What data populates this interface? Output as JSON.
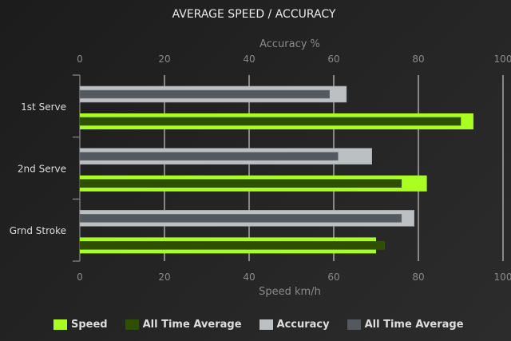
{
  "chart_data": {
    "type": "bar",
    "orientation": "horizontal",
    "title": "AVERAGE SPEED / ACCURACY",
    "categories": [
      "1st Serve",
      "2nd Serve",
      "Grnd Stroke"
    ],
    "top_axis": {
      "label": "Accuracy %",
      "range": [
        0,
        100
      ],
      "ticks": [
        "0",
        "20",
        "40",
        "60",
        "80",
        "100"
      ]
    },
    "bottom_axis": {
      "label": "Speed km/h",
      "range": [
        0,
        100
      ],
      "ticks": [
        "0",
        "20",
        "40",
        "60",
        "80",
        "100"
      ]
    },
    "grid": true,
    "legend_placement": "bottom",
    "series": [
      {
        "name": "Speed",
        "axis": "bottom",
        "color": "#aaff22",
        "values": [
          93,
          82,
          70
        ]
      },
      {
        "name": "All Time Average",
        "axis": "bottom",
        "color": "#2f4f00",
        "values": [
          90,
          76,
          72
        ]
      },
      {
        "name": "Accuracy",
        "axis": "top",
        "color": "#bcc0c3",
        "values": [
          63,
          69,
          79
        ]
      },
      {
        "name": "All Time Average",
        "axis": "top",
        "color": "#545960",
        "values": [
          59,
          61,
          76
        ]
      }
    ]
  }
}
